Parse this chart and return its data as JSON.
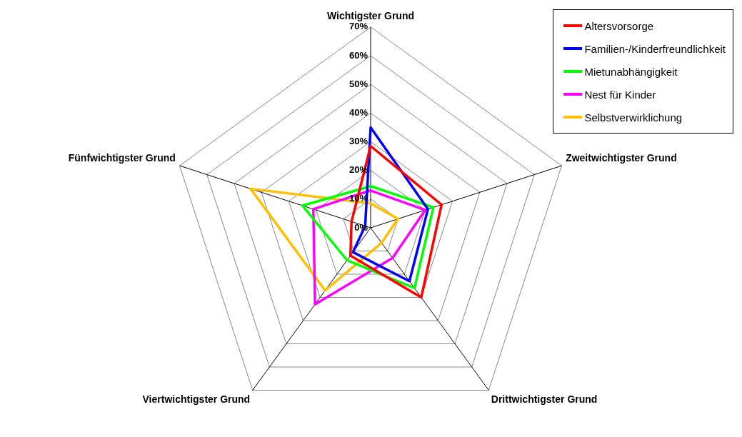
{
  "chart_data": {
    "type": "radar",
    "categories": [
      "Wichtigster Grund",
      "Zweitwichtigster Grund",
      "Drittwichtigster Grund",
      "Viertwichtigster Grund",
      "Fünfwichtigster Grund"
    ],
    "series": [
      {
        "name": "Altersvorsorge",
        "color": "#ff0000",
        "values": [
          28.5,
          26,
          30,
          12,
          7
        ]
      },
      {
        "name": "Familien-/Kinderfreundlichkeit",
        "color": "#0000ff",
        "values": [
          35,
          21,
          23,
          10.5,
          2
        ]
      },
      {
        "name": "Mietunabhängigkeit",
        "color": "#00ff00",
        "values": [
          14.5,
          23,
          26,
          14,
          25
        ]
      },
      {
        "name": "Nest für Kinder",
        "color": "#ff00ff",
        "values": [
          13,
          20,
          13,
          33,
          21
        ]
      },
      {
        "name": "Selbstverwirklichung",
        "color": "#ffc000",
        "values": [
          8.5,
          10,
          6.5,
          27,
          44
        ]
      }
    ],
    "ylim": [
      0,
      70
    ],
    "yticks": [
      {
        "value": 0,
        "label": "0%"
      },
      {
        "value": 10,
        "label": "10%"
      },
      {
        "value": 20,
        "label": "20%"
      },
      {
        "value": 30,
        "label": "30%"
      },
      {
        "value": 40,
        "label": "40%"
      },
      {
        "value": 50,
        "label": "50%"
      },
      {
        "value": 60,
        "label": "60%"
      },
      {
        "value": 70,
        "label": "70%"
      }
    ],
    "grid": true,
    "legend": "top right",
    "marker": "none"
  }
}
